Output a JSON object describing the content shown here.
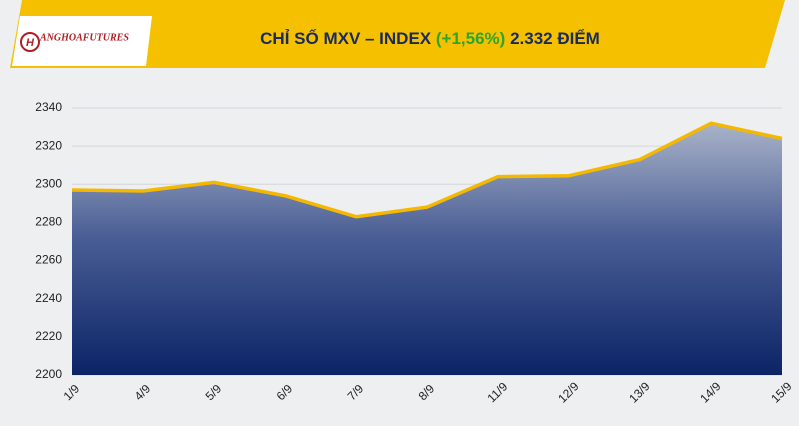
{
  "logo": {
    "mark": "H",
    "text": "ANGHOAFUTURES"
  },
  "chart_data": {
    "type": "area",
    "title": "CHỈ SỐ MXV – INDEX",
    "change_label": "(+1,56%)",
    "value_label": "2.332 ĐIỂM",
    "categories": [
      "1/9",
      "4/9",
      "5/9",
      "6/9",
      "7/9",
      "8/9",
      "11/9",
      "12/9",
      "13/9",
      "14/9",
      "15/9"
    ],
    "values": [
      2297,
      2296.5,
      2301,
      2294,
      2283,
      2288,
      2304,
      2304.5,
      2313,
      2332,
      2324
    ],
    "color": "#f5b800",
    "ylim": [
      2200,
      2340
    ],
    "yticks": [
      2200,
      2220,
      2240,
      2260,
      2280,
      2300,
      2320,
      2340
    ],
    "grid": true
  }
}
